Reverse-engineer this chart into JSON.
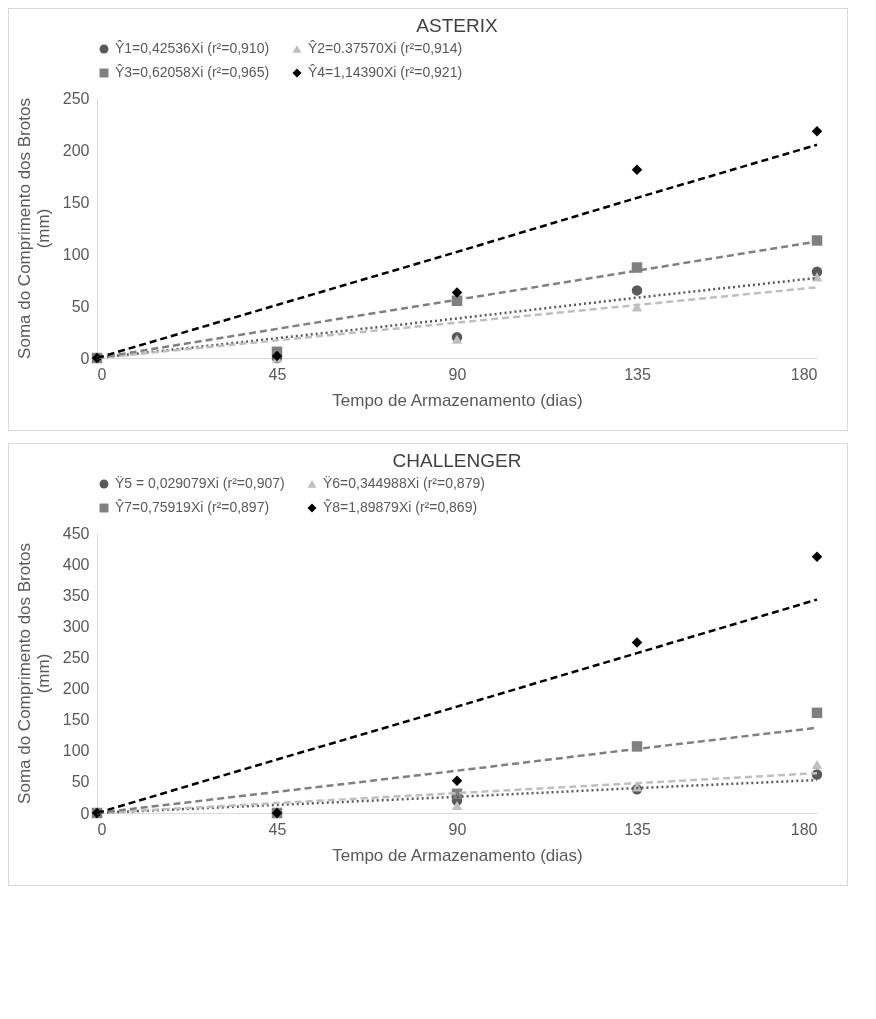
{
  "chart_data": [
    {
      "type": "scatter",
      "title": "ASTERIX",
      "xlabel": "Tempo de Armazenamento (dias)",
      "ylabel": "Soma do Comprimento dos Brotos (mm)",
      "x": [
        0,
        45,
        90,
        135,
        180
      ],
      "xlim": [
        0,
        180
      ],
      "xticks": [
        0,
        45,
        90,
        135,
        180
      ],
      "ylim": [
        0,
        250
      ],
      "yticks": [
        0,
        50,
        100,
        150,
        200,
        250
      ],
      "grid": false,
      "legend": "top",
      "series": [
        {
          "name": "Ŷ1=0,42536Xi (r²=0,910)",
          "color": "#595959",
          "marker": "circle",
          "values": [
            null,
            0,
            20,
            65,
            83
          ]
        },
        {
          "name": "Ŷ2=0.37570Xi (r²=0,914)",
          "color": "#bfbfbf",
          "marker": "triangle",
          "values": [
            null,
            0,
            18,
            49,
            78
          ]
        },
        {
          "name": "Ŷ3=0,62058Xi (r²=0,965)",
          "color": "#808080",
          "marker": "square",
          "values": [
            0,
            6,
            55,
            87,
            113
          ]
        },
        {
          "name": "Ŷ4=1,14390Xi (r²=0,921)",
          "color": "#000000",
          "marker": "diamond",
          "values": [
            0,
            2,
            63,
            181,
            218
          ]
        },
        {
          "type": "line",
          "color": "#595959",
          "line_style": "dotted",
          "marker": "none",
          "values": [
            0,
            19,
            38,
            58,
            77
          ]
        },
        {
          "type": "line",
          "color": "#bfbfbf",
          "line_style": "dashed",
          "marker": "none",
          "values": [
            0,
            17,
            34,
            51,
            68
          ]
        },
        {
          "type": "line",
          "color": "#808080",
          "line_style": "dashed",
          "marker": "none",
          "values": [
            0,
            28,
            56,
            84,
            112
          ]
        },
        {
          "type": "line",
          "color": "#000000",
          "line_style": "dashed",
          "marker": "none",
          "values": [
            0,
            51,
            102,
            154,
            205
          ]
        }
      ]
    },
    {
      "type": "scatter",
      "title": "CHALLENGER",
      "xlabel": "Tempo de Armazenamento (dias)",
      "ylabel": "Soma do Comprimento dos Brotos (mm)",
      "x": [
        0,
        45,
        90,
        135,
        180
      ],
      "xlim": [
        0,
        180
      ],
      "xticks": [
        0,
        45,
        90,
        135,
        180
      ],
      "ylim": [
        0,
        450
      ],
      "yticks": [
        0,
        50,
        100,
        150,
        200,
        250,
        300,
        350,
        400,
        450
      ],
      "grid": false,
      "legend": "top",
      "series": [
        {
          "name": "Ÿ5 = 0,029079Xi (r²=0,907)",
          "color": "#595959",
          "marker": "circle",
          "values": [
            null,
            0,
            20,
            38,
            62
          ]
        },
        {
          "name": "Ÿ6=0,344988Xi (r²=0,879)",
          "color": "#bfbfbf",
          "marker": "triangle",
          "values": [
            null,
            null,
            12,
            42,
            78
          ]
        },
        {
          "name": "Ŷ7=0,75919Xi (r²=0,897)",
          "color": "#808080",
          "marker": "square",
          "values": [
            0,
            0,
            31,
            107,
            161
          ]
        },
        {
          "name": "Ŷ8=1,89879Xi (r²=0,869)",
          "color": "#000000",
          "marker": "diamond",
          "values": [
            0,
            0,
            52,
            274,
            412
          ]
        },
        {
          "type": "line",
          "color": "#595959",
          "line_style": "dotted",
          "marker": "none",
          "values": [
            0,
            13,
            26,
            40,
            53
          ]
        },
        {
          "type": "line",
          "color": "#bfbfbf",
          "line_style": "dashed",
          "marker": "none",
          "values": [
            0,
            16,
            32,
            48,
            64
          ]
        },
        {
          "type": "line",
          "color": "#808080",
          "line_style": "dashed",
          "marker": "none",
          "values": [
            0,
            34,
            68,
            103,
            137
          ]
        },
        {
          "type": "line",
          "color": "#000000",
          "line_style": "dashed",
          "marker": "none",
          "values": [
            0,
            86,
            171,
            257,
            343
          ]
        }
      ]
    }
  ]
}
